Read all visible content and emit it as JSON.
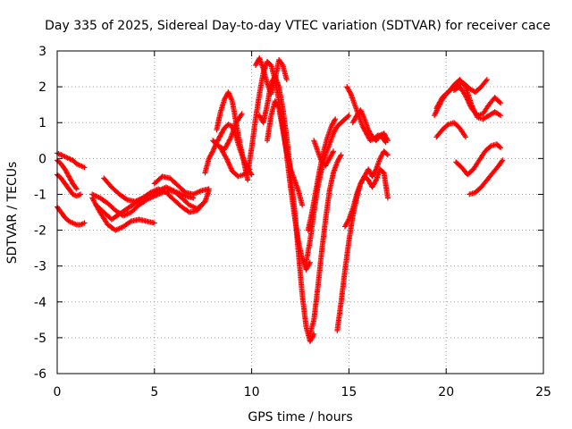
{
  "chart_data": {
    "type": "scatter",
    "title": "Day 335 of 2025, Sidereal Day-to-day VTEC variation (SDTVAR) for receiver cace",
    "xlabel": "GPS time / hours",
    "ylabel": "SDTVAR / TECUs",
    "xlim": [
      0,
      25
    ],
    "ylim": [
      -6,
      3
    ],
    "xticks": [
      0,
      5,
      10,
      15,
      20,
      25
    ],
    "yticks": [
      -6,
      -5,
      -4,
      -3,
      -2,
      -1,
      0,
      1,
      2,
      3
    ],
    "xtick_labels": [
      "0",
      "5",
      "10",
      "15",
      "20",
      "25"
    ],
    "ytick_labels": [
      "-6",
      "-5",
      "-4",
      "-3",
      "-2",
      "-1",
      "0",
      "1",
      "2",
      "3"
    ],
    "grid": true,
    "marker": "+",
    "color": "#ff0000",
    "series": [
      {
        "x": [
          0.0,
          0.2,
          0.4,
          0.6,
          0.8,
          1.0,
          1.2,
          1.4
        ],
        "y": [
          -1.35,
          -1.5,
          -1.65,
          -1.75,
          -1.8,
          -1.85,
          -1.85,
          -1.8
        ]
      },
      {
        "x": [
          0.0,
          0.2,
          0.4,
          0.6,
          0.8,
          1.0,
          1.2
        ],
        "y": [
          -0.45,
          -0.55,
          -0.7,
          -0.85,
          -1.0,
          -1.05,
          -1.0
        ]
      },
      {
        "x": [
          0.0,
          0.2,
          0.4,
          0.6,
          0.8,
          1.0,
          1.2,
          1.4
        ],
        "y": [
          0.15,
          0.1,
          0.05,
          0.0,
          -0.05,
          -0.15,
          -0.2,
          -0.25
        ]
      },
      {
        "x": [
          0.0,
          0.2,
          0.4,
          0.6,
          0.8,
          1.0
        ],
        "y": [
          -0.05,
          -0.15,
          -0.3,
          -0.5,
          -0.7,
          -0.85
        ]
      },
      {
        "x": [
          1.8,
          2.2,
          2.6,
          3.0,
          3.4,
          3.8,
          4.2,
          4.6,
          5.0
        ],
        "y": [
          -1.1,
          -1.5,
          -1.85,
          -2.0,
          -1.9,
          -1.75,
          -1.7,
          -1.75,
          -1.8
        ]
      },
      {
        "x": [
          1.8,
          2.2,
          2.6,
          3.0,
          3.4,
          3.8,
          4.2,
          4.6,
          5.0,
          5.4,
          5.8,
          6.2,
          6.6,
          7.0
        ],
        "y": [
          -1.0,
          -1.1,
          -1.25,
          -1.45,
          -1.6,
          -1.5,
          -1.3,
          -1.15,
          -1.05,
          -0.95,
          -0.9,
          -0.95,
          -1.05,
          -1.1
        ]
      },
      {
        "x": [
          2.4,
          2.8,
          3.2,
          3.6,
          4.0,
          4.4,
          4.8,
          5.2,
          5.6,
          6.0,
          6.4,
          6.8,
          7.2,
          7.6
        ],
        "y": [
          -0.55,
          -0.8,
          -1.0,
          -1.15,
          -1.2,
          -1.1,
          -0.95,
          -0.85,
          -0.95,
          -1.15,
          -1.35,
          -1.5,
          -1.45,
          -1.2
        ]
      },
      {
        "x": [
          2.0,
          2.4,
          2.8,
          3.2,
          3.6,
          4.0,
          4.4,
          4.8,
          5.2,
          5.6,
          6.0,
          6.4,
          6.8,
          7.2,
          7.6,
          7.8
        ],
        "y": [
          -1.3,
          -1.5,
          -1.7,
          -1.55,
          -1.4,
          -1.25,
          -1.1,
          -1.0,
          -0.9,
          -0.8,
          -0.9,
          -1.1,
          -1.3,
          -1.4,
          -1.2,
          -0.9
        ]
      },
      {
        "x": [
          5.0,
          5.4,
          5.8,
          6.2,
          6.6,
          7.0,
          7.4,
          7.8
        ],
        "y": [
          -0.7,
          -0.5,
          -0.55,
          -0.75,
          -0.95,
          -1.0,
          -0.9,
          -0.85
        ]
      },
      {
        "x": [
          7.6,
          7.8,
          8.0,
          8.2,
          8.4,
          8.6,
          8.8,
          9.0,
          9.2,
          9.4,
          9.6,
          9.8,
          10.0
        ],
        "y": [
          -0.4,
          0.0,
          0.2,
          0.45,
          0.65,
          0.85,
          0.95,
          0.9,
          0.6,
          0.25,
          -0.05,
          -0.3,
          -0.45
        ]
      },
      {
        "x": [
          8.2,
          8.4,
          8.6,
          8.8,
          9.0,
          9.2,
          9.4,
          9.6,
          9.8
        ],
        "y": [
          0.8,
          1.3,
          1.65,
          1.85,
          1.6,
          1.0,
          0.4,
          -0.1,
          -0.6
        ]
      },
      {
        "x": [
          8.0,
          8.3,
          8.6,
          8.9,
          9.2,
          9.5
        ],
        "y": [
          0.5,
          0.35,
          0.25,
          0.55,
          1.0,
          1.25
        ]
      },
      {
        "x": [
          8.4,
          8.7,
          9.0,
          9.3,
          9.6,
          9.9
        ],
        "y": [
          0.3,
          0.0,
          -0.35,
          -0.5,
          -0.45,
          -0.3
        ]
      },
      {
        "x": [
          9.8,
          10.0,
          10.2,
          10.4,
          10.6,
          10.8,
          11.0,
          11.2,
          11.4,
          11.6,
          11.8,
          12.0,
          12.2,
          12.4,
          12.6,
          12.8,
          13.0
        ],
        "y": [
          -0.4,
          0.3,
          1.1,
          1.8,
          2.4,
          2.7,
          2.6,
          2.2,
          1.6,
          0.9,
          0.1,
          -0.8,
          -1.6,
          -2.3,
          -2.8,
          -3.1,
          -2.9
        ]
      },
      {
        "x": [
          10.2,
          10.4,
          10.6,
          10.8,
          11.0,
          11.2,
          11.4,
          11.6,
          11.8
        ],
        "y": [
          2.6,
          2.8,
          2.5,
          2.1,
          1.8,
          2.2,
          2.75,
          2.6,
          2.2
        ]
      },
      {
        "x": [
          10.4,
          10.6,
          10.8,
          11.0,
          11.2,
          11.4,
          11.6,
          11.8,
          12.0,
          12.2,
          12.4,
          12.6,
          12.8,
          13.0,
          13.2
        ],
        "y": [
          1.2,
          1.0,
          1.5,
          2.1,
          2.3,
          2.0,
          1.4,
          0.6,
          -0.4,
          -1.4,
          -2.6,
          -3.8,
          -4.7,
          -5.1,
          -4.9
        ]
      },
      {
        "x": [
          10.8,
          11.0,
          11.2,
          11.4,
          11.6,
          11.8,
          12.0,
          12.2,
          12.4,
          12.6
        ],
        "y": [
          0.5,
          1.2,
          1.6,
          1.4,
          0.8,
          0.2,
          -0.3,
          -0.6,
          -0.9,
          -1.3
        ]
      },
      {
        "x": [
          13.0,
          13.2,
          13.4,
          13.6,
          13.8,
          14.0,
          14.2,
          14.4,
          14.6
        ],
        "y": [
          -4.9,
          -4.5,
          -3.6,
          -2.6,
          -1.7,
          -0.9,
          -0.4,
          -0.1,
          0.1
        ]
      },
      {
        "x": [
          12.8,
          13.0,
          13.2,
          13.4,
          13.6,
          13.8,
          14.0,
          14.2,
          14.4,
          14.6,
          14.8,
          15.0
        ],
        "y": [
          -2.9,
          -2.3,
          -1.5,
          -0.8,
          -0.3,
          0.1,
          0.4,
          0.7,
          0.9,
          1.0,
          1.1,
          1.2
        ]
      },
      {
        "x": [
          12.9,
          13.1,
          13.3,
          13.5,
          13.7,
          13.9,
          14.1,
          14.3
        ],
        "y": [
          -2.0,
          -1.5,
          -0.9,
          -0.3,
          0.2,
          0.6,
          0.9,
          1.1
        ]
      },
      {
        "x": [
          13.2,
          13.4,
          13.6,
          13.8,
          14.0,
          14.2
        ],
        "y": [
          0.5,
          0.2,
          -0.1,
          -0.2,
          0.0,
          0.2
        ]
      },
      {
        "x": [
          14.4,
          14.6,
          14.8,
          15.0,
          15.2,
          15.4,
          15.6,
          15.8,
          16.0,
          16.2,
          16.4,
          16.6,
          16.8,
          17.0
        ],
        "y": [
          -4.8,
          -4.0,
          -3.1,
          -2.3,
          -1.6,
          -1.1,
          -0.7,
          -0.5,
          -0.6,
          -0.8,
          -0.6,
          -0.3,
          -0.4,
          -1.1
        ]
      },
      {
        "x": [
          14.8,
          15.0,
          15.2,
          15.4,
          15.6,
          15.8,
          16.0,
          16.2,
          16.4,
          16.6,
          16.8,
          17.0
        ],
        "y": [
          -1.9,
          -1.7,
          -1.4,
          -1.0,
          -0.7,
          -0.5,
          -0.3,
          -0.5,
          -0.3,
          0.0,
          0.2,
          0.1
        ]
      },
      {
        "x": [
          14.9,
          15.1,
          15.3,
          15.5,
          15.7,
          15.9,
          16.1,
          16.3,
          16.5,
          16.7,
          16.9
        ],
        "y": [
          2.0,
          1.8,
          1.5,
          1.2,
          0.9,
          0.7,
          0.5,
          0.55,
          0.65,
          0.6,
          0.45
        ]
      },
      {
        "x": [
          15.2,
          15.4,
          15.6,
          15.8,
          16.0,
          16.2,
          16.4,
          16.6,
          16.8,
          17.0
        ],
        "y": [
          1.0,
          1.2,
          1.35,
          1.1,
          0.8,
          0.6,
          0.5,
          0.65,
          0.7,
          0.5
        ]
      },
      {
        "x": [
          19.4,
          19.7,
          20.0,
          20.3,
          20.6,
          20.9,
          21.2,
          21.5,
          21.8,
          22.1
        ],
        "y": [
          1.2,
          1.55,
          1.8,
          1.95,
          2.05,
          2.1,
          1.95,
          1.85,
          2.0,
          2.2
        ]
      },
      {
        "x": [
          19.5,
          19.8,
          20.1,
          20.4,
          20.7,
          21.0,
          21.3,
          21.6,
          21.9,
          22.2,
          22.5,
          22.8
        ],
        "y": [
          1.4,
          1.7,
          1.85,
          2.05,
          2.2,
          2.0,
          1.5,
          1.15,
          1.1,
          1.2,
          1.3,
          1.2
        ]
      },
      {
        "x": [
          20.4,
          20.7,
          21.0,
          21.3,
          21.6,
          21.9,
          22.2,
          22.5,
          22.8
        ],
        "y": [
          1.9,
          2.0,
          1.75,
          1.4,
          1.2,
          1.25,
          1.5,
          1.7,
          1.55
        ]
      },
      {
        "x": [
          19.5,
          19.8,
          20.1,
          20.4,
          20.7,
          21.0
        ],
        "y": [
          0.6,
          0.8,
          0.95,
          1.0,
          0.85,
          0.6
        ]
      },
      {
        "x": [
          20.5,
          20.8,
          21.1,
          21.4,
          21.7,
          22.0,
          22.3,
          22.6,
          22.8
        ],
        "y": [
          -0.1,
          -0.25,
          -0.45,
          -0.3,
          -0.05,
          0.2,
          0.35,
          0.4,
          0.3
        ]
      },
      {
        "x": [
          21.2,
          21.5,
          21.8,
          22.1,
          22.4,
          22.7,
          22.9
        ],
        "y": [
          -1.0,
          -0.95,
          -0.8,
          -0.6,
          -0.4,
          -0.2,
          -0.05
        ]
      }
    ]
  }
}
